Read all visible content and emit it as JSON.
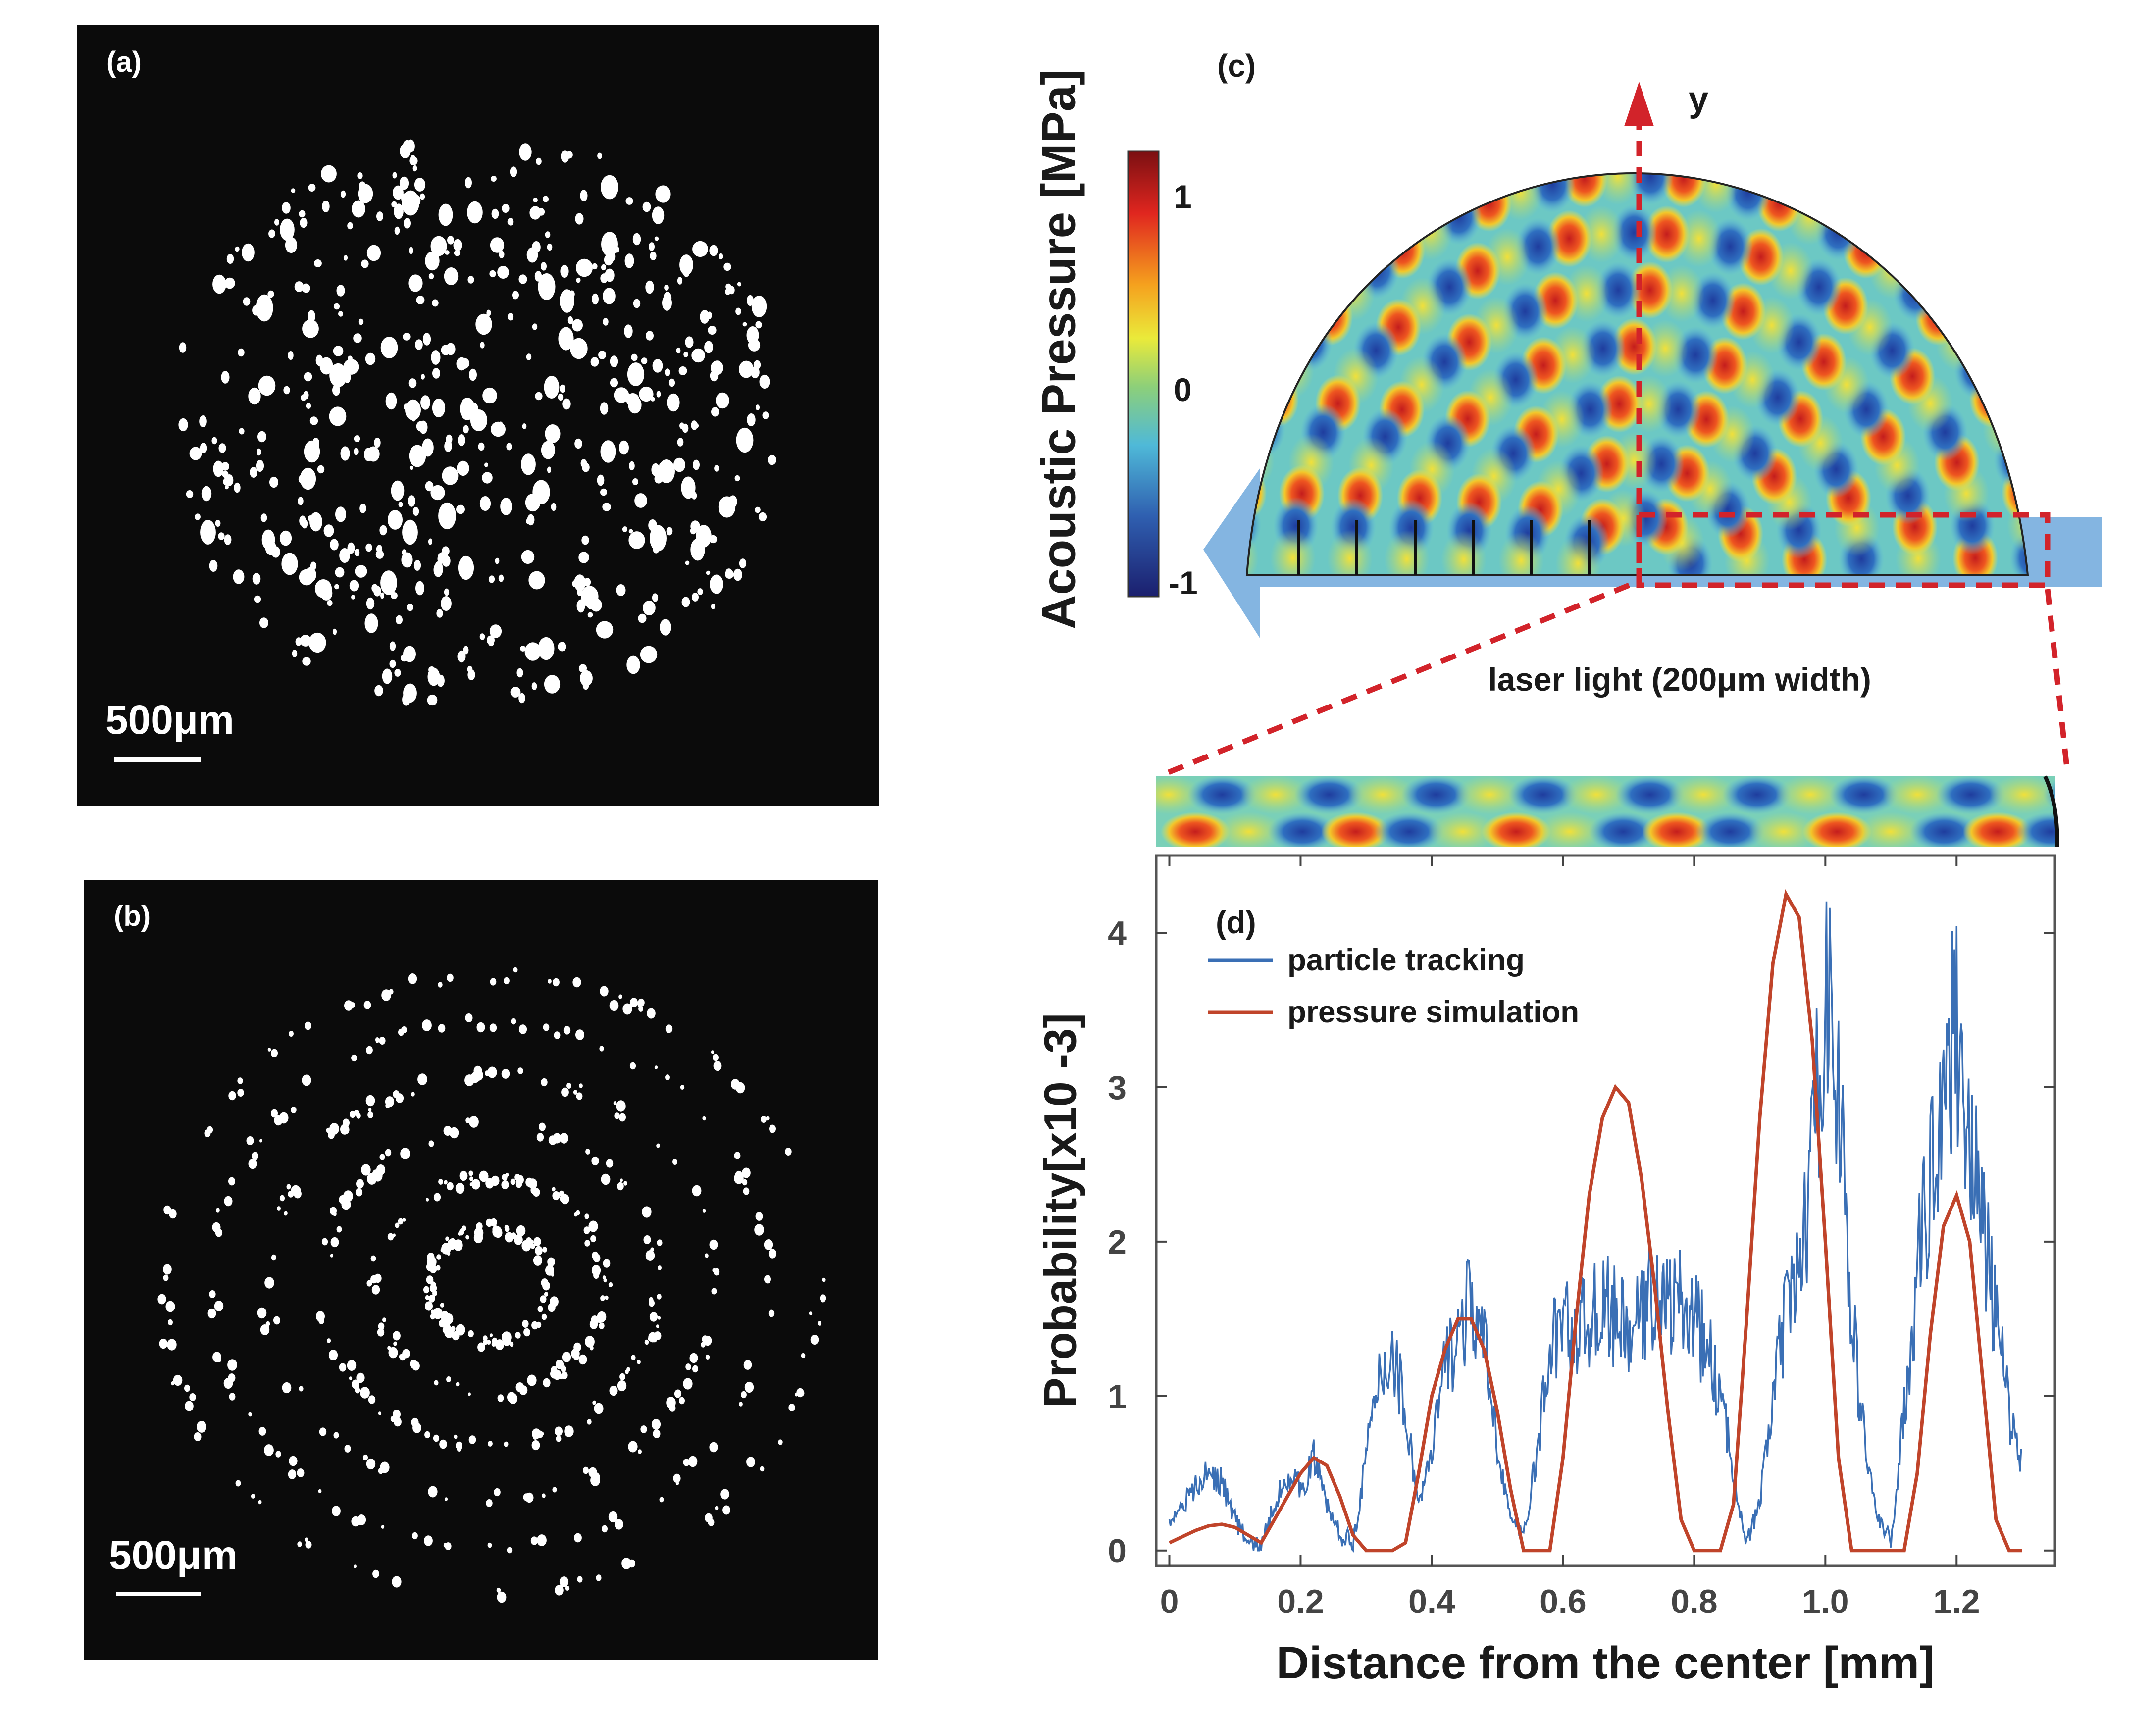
{
  "panel_a": {
    "label": "(a)",
    "scale_bar": "500μm"
  },
  "panel_b": {
    "label": "(b)",
    "scale_bar": "500μm"
  },
  "panel_c": {
    "label": "(c)",
    "axis_label": "y",
    "colorbar_title": "Acoustic Pressure [MPa]",
    "colorbar_ticks": [
      "1",
      "0",
      "-1"
    ],
    "laser_label": "laser light (200μm width)"
  },
  "panel_d": {
    "label": "(d)"
  },
  "colors": {
    "tracking": "#3a6fb5",
    "simulation": "#c0442a",
    "dashed": "#d2232a",
    "arrow": "#6fa8dc"
  },
  "chart_data": {
    "type": "line",
    "title": "",
    "xlabel": "Distance from the center [mm]",
    "ylabel": "Probability[x10 -3]",
    "xlim": [
      -0.02,
      1.35
    ],
    "ylim": [
      -0.1,
      4.5
    ],
    "xticks": [
      0,
      0.2,
      0.4,
      0.6,
      0.8,
      1.0,
      1.2
    ],
    "xtick_labels": [
      "0",
      "0.2",
      "0.4",
      "0.6",
      "0.8",
      "1.0",
      "1.2"
    ],
    "yticks": [
      0,
      1,
      2,
      3,
      4
    ],
    "ytick_labels": [
      "0",
      "1",
      "2",
      "3",
      "4"
    ],
    "legend_position": "top-left",
    "series": [
      {
        "name": "particle tracking",
        "x": [
          0,
          0.02,
          0.04,
          0.06,
          0.08,
          0.1,
          0.12,
          0.14,
          0.16,
          0.18,
          0.2,
          0.22,
          0.24,
          0.26,
          0.28,
          0.3,
          0.32,
          0.34,
          0.36,
          0.38,
          0.4,
          0.42,
          0.44,
          0.46,
          0.48,
          0.5,
          0.52,
          0.54,
          0.56,
          0.58,
          0.6,
          0.62,
          0.64,
          0.66,
          0.68,
          0.7,
          0.72,
          0.74,
          0.76,
          0.78,
          0.8,
          0.82,
          0.84,
          0.86,
          0.88,
          0.9,
          0.92,
          0.94,
          0.96,
          0.98,
          1.0,
          1.02,
          1.04,
          1.06,
          1.08,
          1.1,
          1.12,
          1.14,
          1.16,
          1.18,
          1.2,
          1.22,
          1.24,
          1.26,
          1.28,
          1.3
        ],
        "y": [
          0.2,
          0.3,
          0.4,
          0.5,
          0.45,
          0.2,
          0.05,
          0.02,
          0.3,
          0.5,
          0.4,
          0.6,
          0.3,
          0.1,
          0.05,
          0.6,
          1.1,
          1.3,
          0.9,
          0.3,
          0.6,
          1.2,
          1.4,
          1.6,
          1.3,
          0.7,
          0.2,
          0.1,
          0.6,
          1.3,
          1.5,
          1.4,
          1.5,
          1.6,
          1.5,
          1.4,
          1.5,
          1.7,
          1.6,
          1.6,
          1.5,
          1.3,
          1.0,
          0.5,
          0.05,
          0.3,
          1.0,
          1.5,
          1.8,
          2.5,
          3.7,
          3.0,
          1.5,
          0.7,
          0.2,
          0.05,
          0.9,
          1.8,
          2.4,
          3.1,
          3.4,
          2.7,
          2.1,
          1.5,
          0.9,
          0.6
        ]
      },
      {
        "name": "pressure simulation",
        "x": [
          0,
          0.02,
          0.04,
          0.06,
          0.08,
          0.1,
          0.12,
          0.14,
          0.16,
          0.18,
          0.2,
          0.22,
          0.24,
          0.26,
          0.28,
          0.3,
          0.32,
          0.34,
          0.36,
          0.38,
          0.4,
          0.42,
          0.44,
          0.46,
          0.48,
          0.5,
          0.52,
          0.54,
          0.56,
          0.58,
          0.6,
          0.62,
          0.64,
          0.66,
          0.68,
          0.7,
          0.72,
          0.74,
          0.76,
          0.78,
          0.8,
          0.82,
          0.84,
          0.86,
          0.88,
          0.9,
          0.92,
          0.94,
          0.96,
          0.98,
          1.0,
          1.02,
          1.04,
          1.06,
          1.08,
          1.1,
          1.12,
          1.14,
          1.16,
          1.18,
          1.2,
          1.22,
          1.24,
          1.26,
          1.28,
          1.3
        ],
        "y": [
          0.05,
          0.09,
          0.13,
          0.16,
          0.17,
          0.15,
          0.1,
          0.05,
          0.2,
          0.35,
          0.5,
          0.6,
          0.55,
          0.35,
          0.1,
          0.0,
          0.0,
          0.0,
          0.05,
          0.5,
          1.0,
          1.3,
          1.5,
          1.5,
          1.3,
          0.9,
          0.4,
          0.0,
          0.0,
          0.0,
          0.6,
          1.5,
          2.3,
          2.8,
          3.0,
          2.9,
          2.4,
          1.7,
          0.9,
          0.2,
          0.0,
          0.0,
          0.0,
          0.3,
          1.5,
          2.8,
          3.8,
          4.25,
          4.1,
          3.3,
          2.0,
          0.6,
          0.0,
          0.0,
          0.0,
          0.0,
          0.0,
          0.5,
          1.4,
          2.1,
          2.3,
          2.0,
          1.1,
          0.2,
          0.0,
          0.0
        ]
      }
    ]
  }
}
